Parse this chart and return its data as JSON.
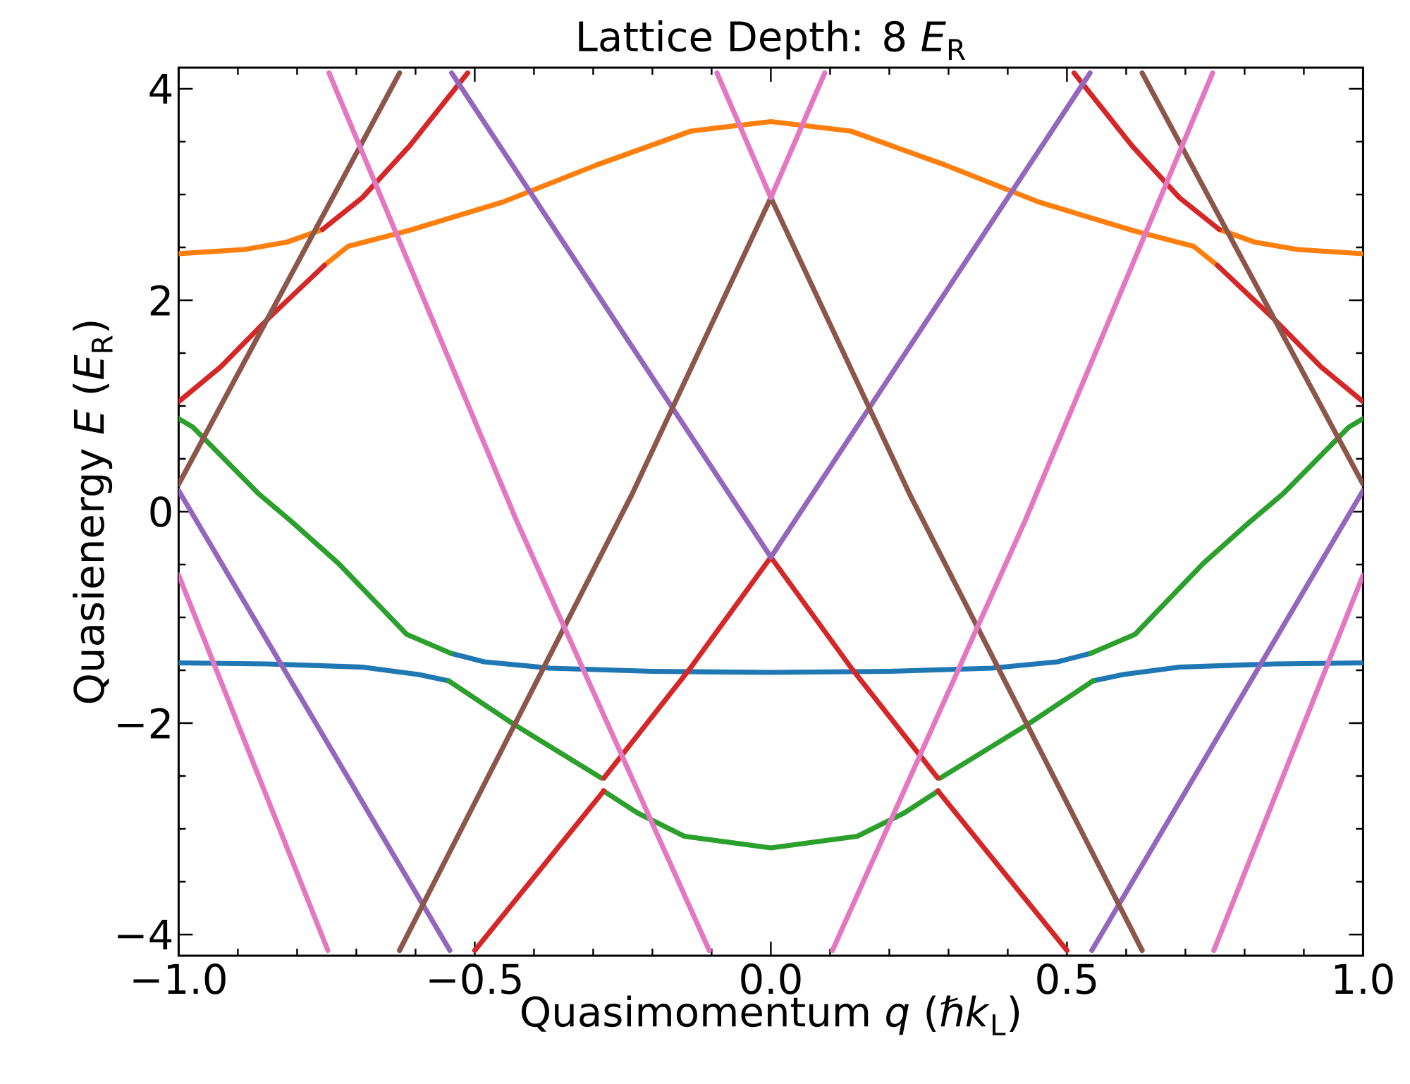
{
  "chart_data": {
    "type": "line",
    "title": "Lattice Depth: 8 *E*$_{R}$",
    "xlabel": "Quasimomentum *q* (*ℏk*$_{L}$)",
    "ylabel": "Quasienergy *E* (*E*$_{R}$)",
    "xlim": [
      -1,
      1
    ],
    "ylim": [
      -4.2,
      4.2
    ],
    "xticks": [
      {
        "value": -1,
        "label": "−1.0"
      },
      {
        "value": -0.5,
        "label": "−0.5"
      },
      {
        "value": 0,
        "label": "0.0"
      },
      {
        "value": 0.5,
        "label": "0.5"
      },
      {
        "value": 1,
        "label": "1.0"
      }
    ],
    "yticks": [
      {
        "value": -4,
        "label": "−4"
      },
      {
        "value": -2,
        "label": "−2"
      },
      {
        "value": 0,
        "label": "0"
      },
      {
        "value": 2,
        "label": "2"
      },
      {
        "value": 4,
        "label": "4"
      }
    ],
    "marker": "none",
    "line_style": "solid",
    "series": [
      {
        "color": "#1f77b4",
        "x": [
          -1,
          -0.85,
          -0.69,
          -0.595,
          -0.544,
          null,
          -0.54,
          -0.484,
          -0.373,
          -0.2,
          0,
          0.2,
          0.373,
          0.484,
          0.54,
          null,
          0.544,
          0.595,
          0.69,
          0.85,
          1
        ],
        "values": [
          -1.43,
          -1.44,
          -1.47,
          -1.54,
          -1.6,
          null,
          -1.34,
          -1.42,
          -1.48,
          -1.51,
          -1.52,
          -1.51,
          -1.48,
          -1.42,
          -1.34,
          null,
          -1.6,
          -1.54,
          -1.47,
          -1.44,
          -1.43
        ]
      },
      {
        "color": "#ff7f0e",
        "x": [
          -1,
          -0.889,
          -0.817,
          -0.757,
          null,
          -0.754,
          -0.714,
          -0.611,
          -0.452,
          -0.294,
          -0.135,
          0,
          0.135,
          0.294,
          0.452,
          0.611,
          0.714,
          0.754,
          null,
          0.757,
          0.817,
          0.889,
          1
        ],
        "values": [
          2.44,
          2.48,
          2.55,
          2.67,
          null,
          2.33,
          2.51,
          2.66,
          2.93,
          3.28,
          3.6,
          3.69,
          3.6,
          3.28,
          2.93,
          2.66,
          2.51,
          2.33,
          null,
          2.67,
          2.55,
          2.48,
          2.44
        ]
      },
      {
        "color": "#2ca02c",
        "x": [
          -1,
          -0.976,
          -0.865,
          -0.81,
          -0.73,
          -0.615,
          -0.54,
          null,
          -0.544,
          -0.437,
          -0.286,
          null,
          -0.283,
          -0.225,
          -0.146,
          0,
          0.146,
          0.225,
          0.283,
          null,
          0.286,
          0.437,
          0.544,
          null,
          0.54,
          0.615,
          0.73,
          0.81,
          0.865,
          0.976,
          1
        ],
        "values": [
          0.88,
          0.8,
          0.17,
          -0.09,
          -0.49,
          -1.16,
          -1.34,
          null,
          -1.6,
          -2.0,
          -2.52,
          null,
          -2.64,
          -2.85,
          -3.07,
          -3.18,
          -3.07,
          -2.85,
          -2.64,
          null,
          -2.52,
          -2.0,
          -1.6,
          null,
          -1.34,
          -1.16,
          -0.49,
          -0.09,
          0.17,
          0.8,
          0.88
        ]
      },
      {
        "color": "#d62728",
        "x": [
          -1,
          -0.929,
          -0.85,
          -0.754,
          null,
          -0.757,
          -0.69,
          -0.61,
          -0.512,
          null,
          -0.5,
          -0.282,
          null,
          -0.282,
          -0.136,
          0,
          0.136,
          0.282,
          null,
          0.282,
          0.5,
          null,
          0.512,
          0.61,
          0.69,
          0.757,
          null,
          0.754,
          0.85,
          0.929,
          1
        ],
        "values": [
          1.04,
          1.37,
          1.82,
          2.33,
          null,
          2.67,
          2.97,
          3.46,
          4.15,
          null,
          -4.15,
          -2.64,
          null,
          -2.52,
          -1.48,
          -0.43,
          -1.48,
          -2.52,
          null,
          -2.64,
          -4.15,
          null,
          4.15,
          3.46,
          2.97,
          2.67,
          null,
          2.33,
          1.82,
          1.37,
          1.04
        ]
      },
      {
        "color": "#9467bd",
        "x": [
          -1,
          -0.542,
          null,
          -0.539,
          0,
          0.539,
          null,
          0.542,
          1
        ],
        "values": [
          0.2,
          -4.15,
          null,
          4.15,
          -0.43,
          4.15,
          null,
          -4.15,
          0.2
        ]
      },
      {
        "color": "#8c564b",
        "x": [
          -1,
          -0.627,
          null,
          -0.627,
          -0.234,
          0,
          0.234,
          0.627,
          null,
          0.627,
          1
        ],
        "values": [
          0.26,
          4.15,
          null,
          -4.15,
          0.17,
          2.97,
          0.17,
          -4.15,
          null,
          4.15,
          0.26
        ]
      },
      {
        "color": "#e377c2",
        "x": [
          -1,
          -0.748,
          null,
          -0.746,
          -0.429,
          -0.104,
          null,
          -0.091,
          0,
          0.091,
          null,
          0.104,
          0.429,
          0.746,
          null,
          0.748,
          1
        ],
        "values": [
          -0.6,
          -4.15,
          null,
          4.15,
          -0.09,
          -4.15,
          null,
          4.15,
          2.97,
          4.15,
          null,
          -4.15,
          -0.09,
          4.15,
          null,
          -4.15,
          -0.6
        ]
      }
    ]
  }
}
